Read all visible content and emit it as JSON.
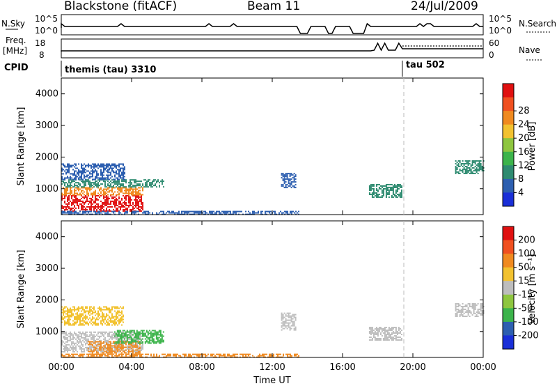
{
  "header": {
    "station": "Blackstone (fitACF)",
    "beam": "Beam 11",
    "date": "24/Jul/2009"
  },
  "side_labels": {
    "nsky": "N.Sky",
    "freq_line1": "Freq.",
    "freq_line2": "[MHz]",
    "cpid": "CPID",
    "nsearch": "N.Search",
    "nave": "Nave"
  },
  "nsky_axis": {
    "top": "10^5",
    "bottom": "10^0"
  },
  "freq_axis": {
    "top": "18",
    "bottom": "8"
  },
  "nave_axis": {
    "top": "60",
    "bottom": "0"
  },
  "cpid": [
    {
      "label": "themis (tau) 3310",
      "start_hour": 0.0
    },
    {
      "label": "tau 502",
      "start_hour": 19.4
    }
  ],
  "x_axis": {
    "title": "Time UT",
    "ticks": [
      "00:00",
      "04:00",
      "08:00",
      "12:00",
      "16:00",
      "20:00",
      "00:00"
    ]
  },
  "colors": {
    "dark_blue": "#1a2fd8",
    "blue": "#2d5fb0",
    "teal": "#2e8b70",
    "green": "#3cb44b",
    "light_green": "#8ec63f",
    "gray": "#bdbdbd",
    "yellow": "#f2c230",
    "orange": "#f08a20",
    "red_orange": "#f05020",
    "red": "#e01010"
  },
  "chart_data": [
    {
      "type": "heatmap",
      "panel": "power",
      "ylabel": "Slant Range [km]",
      "xlabel": "",
      "xlim": [
        0,
        24
      ],
      "ylim": [
        180,
        4500
      ],
      "yticks": [
        "1000",
        "2000",
        "3000",
        "4000"
      ],
      "colorbar": {
        "label": "Power [dB]",
        "ticks": [
          "4",
          "8",
          "12",
          "16",
          "20",
          "24",
          "28"
        ],
        "colors": [
          "#1a2fd8",
          "#2d5fb0",
          "#2e8b70",
          "#3cb44b",
          "#8ec63f",
          "#f2c230",
          "#f08a20",
          "#f05020",
          "#e01010"
        ]
      },
      "regions": [
        {
          "t": [
            0.0,
            4.6
          ],
          "r": [
            300,
            800
          ],
          "level": "red"
        },
        {
          "t": [
            0.0,
            4.6
          ],
          "r": [
            800,
            1050
          ],
          "level": "orange"
        },
        {
          "t": [
            0.0,
            5.8
          ],
          "r": [
            1050,
            1300
          ],
          "level": "teal"
        },
        {
          "t": [
            0.0,
            3.6
          ],
          "r": [
            1300,
            1800
          ],
          "level": "blue"
        },
        {
          "t": [
            0.0,
            13.5
          ],
          "r": [
            180,
            300
          ],
          "level": "blue"
        },
        {
          "t": [
            12.5,
            13.3
          ],
          "r": [
            1050,
            1500
          ],
          "level": "blue"
        },
        {
          "t": [
            17.5,
            19.4
          ],
          "r": [
            750,
            1150
          ],
          "level": "teal"
        },
        {
          "t": [
            22.4,
            24.0
          ],
          "r": [
            1500,
            1900
          ],
          "level": "teal"
        }
      ]
    },
    {
      "type": "heatmap",
      "panel": "velocity",
      "ylabel": "Slant Range [km]",
      "xlabel": "Time UT",
      "xlim": [
        0,
        24
      ],
      "ylim": [
        180,
        4500
      ],
      "yticks": [
        "1000",
        "2000",
        "3000",
        "4000"
      ],
      "colorbar": {
        "label": "Velocity [m s⁻¹]",
        "ticks": [
          "200",
          "100",
          "50",
          "15",
          "-15",
          "-50",
          "-100",
          "-200"
        ],
        "colors": [
          "#1a2fd8",
          "#2d5fb0",
          "#3cb44b",
          "#8ec63f",
          "#bdbdbd",
          "#f2c230",
          "#f08a20",
          "#f05020",
          "#e01010"
        ]
      },
      "regions": [
        {
          "t": [
            0.0,
            4.6
          ],
          "r": [
            350,
            1000
          ],
          "level": "gray"
        },
        {
          "t": [
            1.5,
            4.5
          ],
          "r": [
            300,
            700
          ],
          "level": "orange"
        },
        {
          "t": [
            3.0,
            5.8
          ],
          "r": [
            650,
            1050
          ],
          "level": "green"
        },
        {
          "t": [
            0.0,
            3.5
          ],
          "r": [
            1200,
            1800
          ],
          "level": "yellow"
        },
        {
          "t": [
            0.0,
            13.5
          ],
          "r": [
            180,
            300
          ],
          "level": "orange"
        },
        {
          "t": [
            12.5,
            13.3
          ],
          "r": [
            1050,
            1600
          ],
          "level": "gray"
        },
        {
          "t": [
            17.5,
            19.4
          ],
          "r": [
            750,
            1150
          ],
          "level": "gray"
        },
        {
          "t": [
            22.4,
            24.0
          ],
          "r": [
            1500,
            1900
          ],
          "level": "gray"
        }
      ]
    }
  ]
}
